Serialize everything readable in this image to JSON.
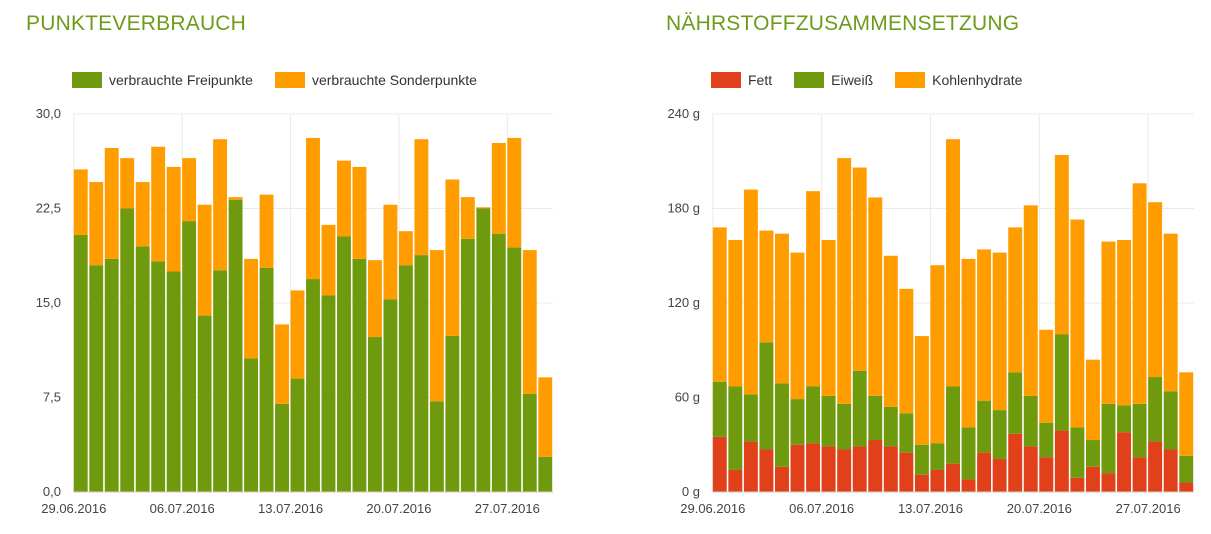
{
  "chart_data": [
    {
      "type": "bar",
      "stacked": true,
      "title": "PUNKTEVERBRAUCH",
      "ylim": [
        0,
        30
      ],
      "yticks": [
        "0,0",
        "7,5",
        "15,0",
        "22,5",
        "30,0"
      ],
      "ytick_values": [
        0,
        7.5,
        15,
        22.5,
        30
      ],
      "xtick_labels": [
        "29.06.2016",
        "06.07.2016",
        "13.07.2016",
        "20.07.2016",
        "27.07.2016"
      ],
      "xtick_index": [
        0,
        7,
        14,
        21,
        28
      ],
      "legend": "top-left",
      "grid": true,
      "series": [
        {
          "name": "verbrauchte Freipunkte",
          "color": "#6f9a0e",
          "values": [
            20.4,
            18.0,
            18.5,
            22.5,
            19.5,
            18.3,
            17.5,
            21.5,
            14.0,
            17.6,
            23.2,
            10.6,
            17.8,
            7.0,
            9.0,
            16.9,
            15.6,
            20.3,
            18.5,
            12.3,
            15.3,
            18.0,
            18.8,
            7.2,
            12.4,
            20.1,
            22.5,
            20.5,
            19.4,
            7.8,
            2.8
          ]
        },
        {
          "name": "verbrauchte Sonderpunkte",
          "color": "#ff9c00",
          "values": [
            5.2,
            6.6,
            8.8,
            4.0,
            5.1,
            9.1,
            8.3,
            5.0,
            8.8,
            10.4,
            0.2,
            7.9,
            5.8,
            6.3,
            7.0,
            11.2,
            5.6,
            6.0,
            7.3,
            6.1,
            7.5,
            2.7,
            9.2,
            12.0,
            12.4,
            3.3,
            0.1,
            7.2,
            8.7,
            11.4,
            6.3
          ]
        }
      ]
    },
    {
      "type": "bar",
      "stacked": true,
      "title": "NÄHRSTOFFZUSAMMENSETZUNG",
      "ylim": [
        0,
        240
      ],
      "yticks": [
        "0 g",
        "60 g",
        "120 g",
        "180 g",
        "240 g"
      ],
      "ytick_values": [
        0,
        60,
        120,
        180,
        240
      ],
      "xtick_labels": [
        "29.06.2016",
        "06.07.2016",
        "13.07.2016",
        "20.07.2016",
        "27.07.2016"
      ],
      "xtick_index": [
        0,
        7,
        14,
        21,
        28
      ],
      "legend": "top-left",
      "grid": true,
      "series": [
        {
          "name": "Fett",
          "color": "#e0401a",
          "values": [
            35,
            14,
            32,
            27,
            16,
            30,
            31,
            29,
            27,
            29,
            33,
            29,
            25,
            11,
            14,
            18,
            8,
            25,
            21,
            37,
            29,
            22,
            39,
            9,
            16,
            12,
            38,
            22,
            32,
            27,
            6
          ]
        },
        {
          "name": "Eiweiß",
          "color": "#6f9a0e",
          "values": [
            35,
            53,
            30,
            68,
            53,
            29,
            36,
            32,
            29,
            48,
            28,
            25,
            25,
            19,
            17,
            49,
            33,
            33,
            31,
            39,
            32,
            22,
            61,
            32,
            17,
            44,
            17,
            34,
            41,
            37,
            17
          ]
        },
        {
          "name": "Kohlenhydrate",
          "color": "#ff9c00",
          "values": [
            98,
            93,
            130,
            71,
            95,
            93,
            124,
            99,
            156,
            129,
            126,
            96,
            79,
            69,
            113,
            157,
            107,
            96,
            100,
            92,
            121,
            59,
            114,
            132,
            51,
            103,
            105,
            140,
            111,
            100,
            53
          ]
        }
      ]
    }
  ]
}
